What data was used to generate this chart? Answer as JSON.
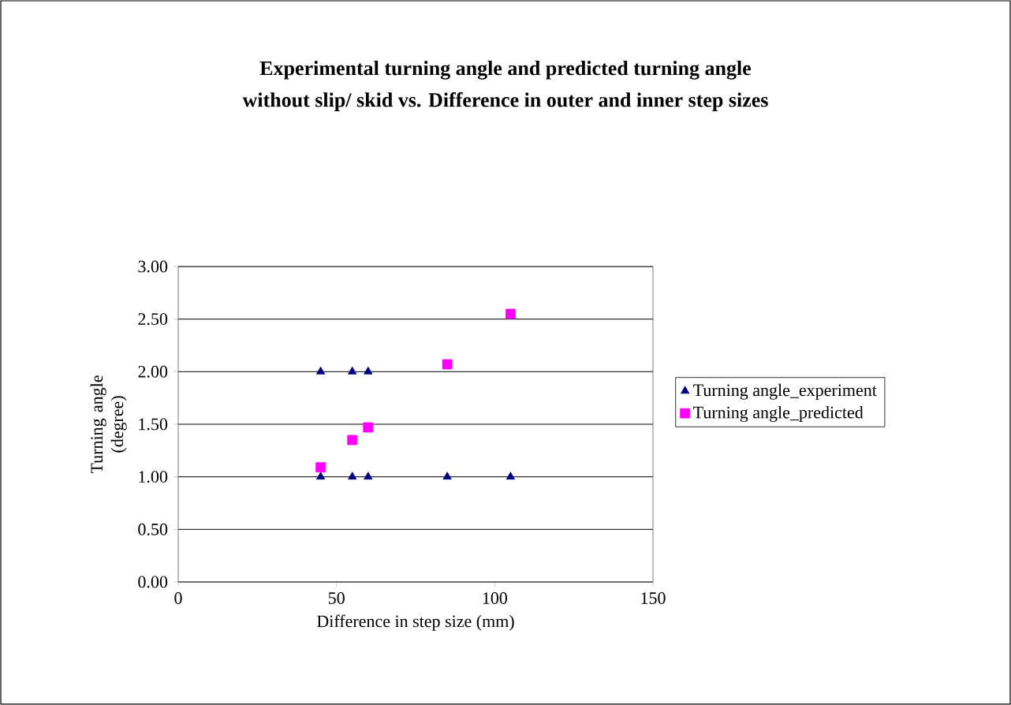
{
  "chart_data": {
    "type": "scatter",
    "title": "Experimental turning angle and predicted turning angle",
    "subtitle": "without slip/ skid vs. Difference in outer and inner step sizes",
    "xlabel": "Difference in step size (mm)",
    "ylabel": "Turning angle (degree)",
    "xlim": [
      0,
      150
    ],
    "xticks": [
      0,
      50,
      100,
      150
    ],
    "ylim": [
      0,
      3
    ],
    "yticks": [
      {
        "value": 0,
        "label": "0.00"
      },
      {
        "value": 0.5,
        "label": "0.50"
      },
      {
        "value": 1,
        "label": "1.00"
      },
      {
        "value": 1.5,
        "label": "1.50"
      },
      {
        "value": 2,
        "label": "2.00"
      },
      {
        "value": 2.5,
        "label": "2.50"
      },
      {
        "value": 3,
        "label": "3.00"
      }
    ],
    "grid": "y",
    "legend": "right",
    "series": [
      {
        "name": "Turning angle_experiment",
        "color": "#000080",
        "marker": "triangle",
        "x": [
          45,
          55,
          60,
          45,
          55,
          60,
          85,
          105
        ],
        "values": [
          2,
          2,
          2,
          1,
          1,
          1,
          1,
          1
        ]
      },
      {
        "name": "Turning angle_predicted",
        "color": "#ff00ff",
        "marker": "square",
        "x": [
          45,
          55,
          60,
          85,
          105
        ],
        "values": [
          1.09,
          1.35,
          1.47,
          2.07,
          2.55
        ]
      }
    ]
  }
}
